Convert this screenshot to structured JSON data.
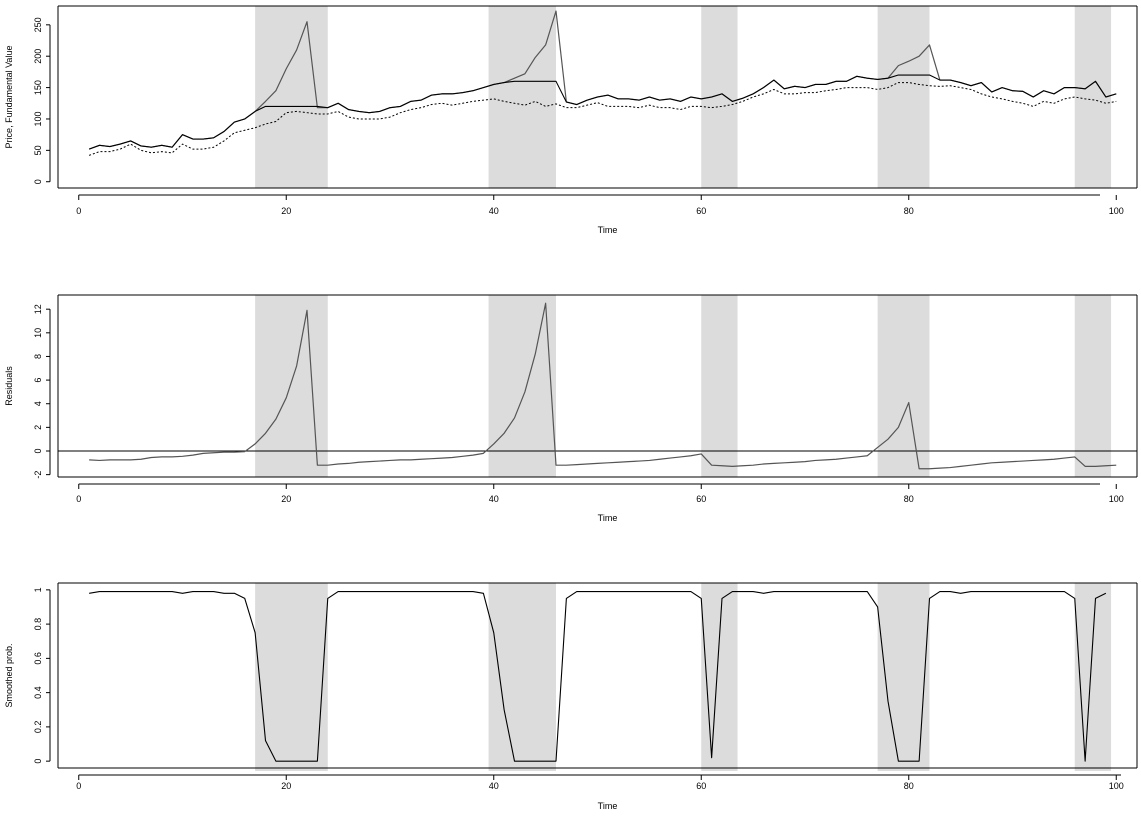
{
  "colors": {
    "background": "#ffffff",
    "shade": "#dcdcdc",
    "series_dark": "#000000",
    "series_gray": "#555555",
    "frame": "#000000"
  },
  "chart_data": [
    {
      "type": "line",
      "xlabel": "Time",
      "ylabel": "Price, Fundamental Value",
      "xlim": [
        -2,
        102
      ],
      "ylim": [
        -10,
        280
      ],
      "xticks": [
        0,
        20,
        40,
        60,
        80,
        100
      ],
      "yticks": [
        0,
        50,
        100,
        150,
        200,
        250
      ],
      "grid": false,
      "shaded_regions": [
        [
          17,
          24
        ],
        [
          39.5,
          46
        ],
        [
          60,
          63.5
        ],
        [
          77,
          82
        ],
        [
          96,
          99.5
        ]
      ],
      "series": [
        {
          "style": "solid-gray",
          "x": [
            1,
            2,
            3,
            4,
            5,
            6,
            7,
            8,
            9,
            10,
            11,
            12,
            13,
            14,
            15,
            16,
            17,
            18,
            19,
            20,
            21,
            22,
            23,
            24,
            25,
            26,
            27,
            28,
            29,
            30,
            31,
            32,
            33,
            34,
            35,
            36,
            37,
            38,
            39,
            40,
            41,
            42,
            43,
            44,
            45,
            46,
            47,
            48,
            49,
            50,
            51,
            52,
            53,
            54,
            55,
            56,
            57,
            58,
            59,
            60,
            61,
            62,
            63,
            64,
            65,
            66,
            67,
            68,
            69,
            70,
            71,
            72,
            73,
            74,
            75,
            76,
            77,
            78,
            79,
            80,
            81,
            82,
            83,
            84,
            85,
            86,
            87,
            88,
            89,
            90,
            91,
            92,
            93,
            94,
            95,
            96,
            97,
            98,
            99,
            100
          ],
          "y": [
            52,
            58,
            56,
            60,
            65,
            57,
            55,
            58,
            55,
            75,
            68,
            68,
            70,
            80,
            95,
            100,
            112,
            128,
            145,
            180,
            210,
            255,
            118,
            118,
            125,
            115,
            112,
            110,
            112,
            118,
            120,
            128,
            130,
            138,
            140,
            140,
            142,
            145,
            150,
            155,
            158,
            165,
            172,
            198,
            218,
            272,
            127,
            123,
            130,
            135,
            138,
            132,
            132,
            130,
            135,
            130,
            132,
            128,
            135,
            132,
            135,
            140,
            128,
            133,
            140,
            150,
            162,
            148,
            152,
            150,
            155,
            155,
            160,
            160,
            168,
            165,
            163,
            165,
            185,
            192,
            200,
            218,
            162,
            162,
            158,
            153,
            158,
            143,
            150,
            145,
            144,
            135,
            145,
            140,
            150,
            150,
            148,
            160,
            135,
            140
          ]
        },
        {
          "style": "solid-dark",
          "x": [
            1,
            2,
            3,
            4,
            5,
            6,
            7,
            8,
            9,
            10,
            11,
            12,
            13,
            14,
            15,
            16,
            17,
            18,
            19,
            20,
            21,
            22,
            23,
            24,
            25,
            26,
            27,
            28,
            29,
            30,
            31,
            32,
            33,
            34,
            35,
            36,
            37,
            38,
            39,
            40,
            41,
            42,
            43,
            44,
            45,
            46,
            47,
            48,
            49,
            50,
            51,
            52,
            53,
            54,
            55,
            56,
            57,
            58,
            59,
            60,
            61,
            62,
            63,
            64,
            65,
            66,
            67,
            68,
            69,
            70,
            71,
            72,
            73,
            74,
            75,
            76,
            77,
            78,
            79,
            80,
            81,
            82,
            83,
            84,
            85,
            86,
            87,
            88,
            89,
            90,
            91,
            92,
            93,
            94,
            95,
            96,
            97,
            98,
            99,
            100
          ],
          "y": [
            52,
            58,
            56,
            60,
            65,
            57,
            55,
            58,
            55,
            75,
            68,
            68,
            70,
            80,
            95,
            100,
            112,
            120,
            120,
            120,
            120,
            120,
            120,
            118,
            125,
            115,
            112,
            110,
            112,
            118,
            120,
            128,
            130,
            138,
            140,
            140,
            142,
            145,
            150,
            155,
            158,
            160,
            160,
            160,
            160,
            160,
            127,
            123,
            130,
            135,
            138,
            132,
            132,
            130,
            135,
            130,
            132,
            128,
            135,
            132,
            135,
            140,
            128,
            133,
            140,
            150,
            162,
            148,
            152,
            150,
            155,
            155,
            160,
            160,
            168,
            165,
            163,
            165,
            170,
            170,
            170,
            170,
            162,
            162,
            158,
            153,
            158,
            143,
            150,
            145,
            144,
            135,
            145,
            140,
            150,
            150,
            148,
            160,
            135,
            140
          ]
        },
        {
          "style": "dotted",
          "x": [
            1,
            2,
            3,
            4,
            5,
            6,
            7,
            8,
            9,
            10,
            11,
            12,
            13,
            14,
            15,
            16,
            17,
            18,
            19,
            20,
            21,
            22,
            23,
            24,
            25,
            26,
            27,
            28,
            29,
            30,
            31,
            32,
            33,
            34,
            35,
            36,
            37,
            38,
            39,
            40,
            41,
            42,
            43,
            44,
            45,
            46,
            47,
            48,
            49,
            50,
            51,
            52,
            53,
            54,
            55,
            56,
            57,
            58,
            59,
            60,
            61,
            62,
            63,
            64,
            65,
            66,
            67,
            68,
            69,
            70,
            71,
            72,
            73,
            74,
            75,
            76,
            77,
            78,
            79,
            80,
            81,
            82,
            83,
            84,
            85,
            86,
            87,
            88,
            89,
            90,
            91,
            92,
            93,
            94,
            95,
            96,
            97,
            98,
            99,
            100
          ],
          "y": [
            42,
            48,
            48,
            52,
            60,
            50,
            46,
            48,
            46,
            60,
            52,
            52,
            55,
            65,
            78,
            82,
            86,
            92,
            96,
            110,
            112,
            110,
            108,
            108,
            112,
            103,
            100,
            100,
            100,
            103,
            110,
            115,
            118,
            123,
            125,
            122,
            125,
            128,
            130,
            132,
            128,
            125,
            122,
            128,
            120,
            124,
            118,
            118,
            122,
            126,
            120,
            120,
            120,
            118,
            122,
            118,
            118,
            115,
            120,
            120,
            118,
            120,
            123,
            128,
            135,
            140,
            147,
            140,
            140,
            142,
            142,
            145,
            147,
            150,
            150,
            150,
            147,
            150,
            158,
            158,
            155,
            153,
            152,
            153,
            150,
            147,
            140,
            135,
            132,
            128,
            125,
            120,
            128,
            125,
            132,
            135,
            132,
            130,
            125,
            128
          ]
        }
      ]
    },
    {
      "type": "line",
      "xlabel": "Time",
      "ylabel": "Residuals",
      "xlim": [
        -2,
        102
      ],
      "ylim": [
        -2.2,
        13.2
      ],
      "xticks": [
        0,
        20,
        40,
        60,
        80,
        100
      ],
      "yticks": [
        -2,
        0,
        2,
        4,
        6,
        8,
        10,
        12
      ],
      "hline": 0,
      "grid": false,
      "shaded_regions": [
        [
          17,
          24
        ],
        [
          39.5,
          46
        ],
        [
          60,
          63.5
        ],
        [
          77,
          82
        ],
        [
          96,
          99.5
        ]
      ],
      "series": [
        {
          "style": "solid-gray",
          "x": [
            1,
            2,
            3,
            4,
            5,
            6,
            7,
            8,
            9,
            10,
            11,
            12,
            13,
            14,
            15,
            16,
            17,
            18,
            19,
            20,
            21,
            22,
            23,
            24,
            25,
            26,
            27,
            28,
            29,
            30,
            31,
            32,
            33,
            34,
            35,
            36,
            37,
            38,
            39,
            40,
            41,
            42,
            43,
            44,
            45,
            46,
            47,
            48,
            49,
            50,
            51,
            52,
            53,
            54,
            55,
            56,
            57,
            58,
            59,
            60,
            61,
            62,
            63,
            64,
            65,
            66,
            67,
            68,
            69,
            70,
            71,
            72,
            73,
            74,
            75,
            76,
            77,
            78,
            79,
            80,
            81,
            82,
            83,
            84,
            85,
            86,
            87,
            88,
            89,
            90,
            91,
            92,
            93,
            94,
            95,
            96,
            97,
            98,
            99,
            100
          ],
          "y": [
            -0.75,
            -0.8,
            -0.75,
            -0.75,
            -0.75,
            -0.7,
            -0.55,
            -0.5,
            -0.5,
            -0.45,
            -0.35,
            -0.2,
            -0.15,
            -0.1,
            -0.1,
            -0.05,
            0.6,
            1.5,
            2.7,
            4.5,
            7.2,
            11.9,
            -1.2,
            -1.2,
            -1.1,
            -1.05,
            -0.95,
            -0.9,
            -0.85,
            -0.8,
            -0.75,
            -0.75,
            -0.7,
            -0.65,
            -0.6,
            -0.55,
            -0.45,
            -0.35,
            -0.2,
            0.6,
            1.5,
            2.8,
            5.0,
            8.2,
            12.5,
            -1.2,
            -1.2,
            -1.15,
            -1.1,
            -1.05,
            -1.0,
            -0.95,
            -0.9,
            -0.85,
            -0.8,
            -0.7,
            -0.6,
            -0.5,
            -0.4,
            -0.25,
            -1.2,
            -1.25,
            -1.3,
            -1.25,
            -1.2,
            -1.1,
            -1.05,
            -1.0,
            -0.95,
            -0.9,
            -0.8,
            -0.75,
            -0.7,
            -0.6,
            -0.5,
            -0.4,
            0.3,
            1.0,
            2.0,
            4.1,
            -1.5,
            -1.5,
            -1.45,
            -1.4,
            -1.3,
            -1.2,
            -1.1,
            -1.0,
            -0.95,
            -0.9,
            -0.85,
            -0.8,
            -0.75,
            -0.7,
            -0.6,
            -0.5,
            -1.3,
            -1.3,
            -1.25,
            -1.2
          ]
        }
      ]
    },
    {
      "type": "line",
      "xlabel": "Time",
      "ylabel": "Smoothed prob.",
      "xlim": [
        -2,
        102
      ],
      "ylim": [
        -0.04,
        1.04
      ],
      "xticks": [
        0,
        20,
        40,
        60,
        80,
        100
      ],
      "yticks": [
        0.0,
        0.2,
        0.4,
        0.6,
        0.8,
        1.0
      ],
      "grid": false,
      "shaded_regions": [
        [
          17,
          24
        ],
        [
          39.5,
          46
        ],
        [
          60,
          63.5
        ],
        [
          77,
          82
        ],
        [
          96,
          99.5
        ]
      ],
      "series": [
        {
          "style": "solid-dark",
          "x": [
            1,
            2,
            3,
            4,
            5,
            6,
            7,
            8,
            9,
            10,
            11,
            12,
            13,
            14,
            15,
            16,
            17,
            18,
            19,
            20,
            21,
            22,
            23,
            24,
            25,
            26,
            27,
            28,
            29,
            30,
            31,
            32,
            33,
            34,
            35,
            36,
            37,
            38,
            39,
            40,
            41,
            42,
            43,
            44,
            45,
            46,
            47,
            48,
            49,
            50,
            51,
            52,
            53,
            54,
            55,
            56,
            57,
            58,
            59,
            60,
            61,
            62,
            63,
            64,
            65,
            66,
            67,
            68,
            69,
            70,
            71,
            72,
            73,
            74,
            75,
            76,
            77,
            78,
            79,
            80,
            81,
            82,
            83,
            84,
            85,
            86,
            87,
            88,
            89,
            90,
            91,
            92,
            93,
            94,
            95,
            96,
            97,
            98,
            99
          ],
          "y": [
            0.98,
            0.99,
            0.99,
            0.99,
            0.99,
            0.99,
            0.99,
            0.99,
            0.99,
            0.98,
            0.99,
            0.99,
            0.99,
            0.98,
            0.98,
            0.95,
            0.75,
            0.12,
            0.0,
            0.0,
            0.0,
            0.0,
            0.0,
            0.95,
            0.99,
            0.99,
            0.99,
            0.99,
            0.99,
            0.99,
            0.99,
            0.99,
            0.99,
            0.99,
            0.99,
            0.99,
            0.99,
            0.99,
            0.98,
            0.75,
            0.3,
            0.0,
            0.0,
            0.0,
            0.0,
            0.0,
            0.95,
            0.99,
            0.99,
            0.99,
            0.99,
            0.99,
            0.99,
            0.99,
            0.99,
            0.99,
            0.99,
            0.99,
            0.99,
            0.95,
            0.02,
            0.95,
            0.99,
            0.99,
            0.99,
            0.98,
            0.99,
            0.99,
            0.99,
            0.99,
            0.99,
            0.99,
            0.99,
            0.99,
            0.99,
            0.99,
            0.9,
            0.35,
            0.0,
            0.0,
            0.0,
            0.95,
            0.99,
            0.99,
            0.98,
            0.99,
            0.99,
            0.99,
            0.99,
            0.99,
            0.99,
            0.99,
            0.99,
            0.99,
            0.99,
            0.95,
            0.0,
            0.95,
            0.98
          ]
        }
      ]
    }
  ]
}
